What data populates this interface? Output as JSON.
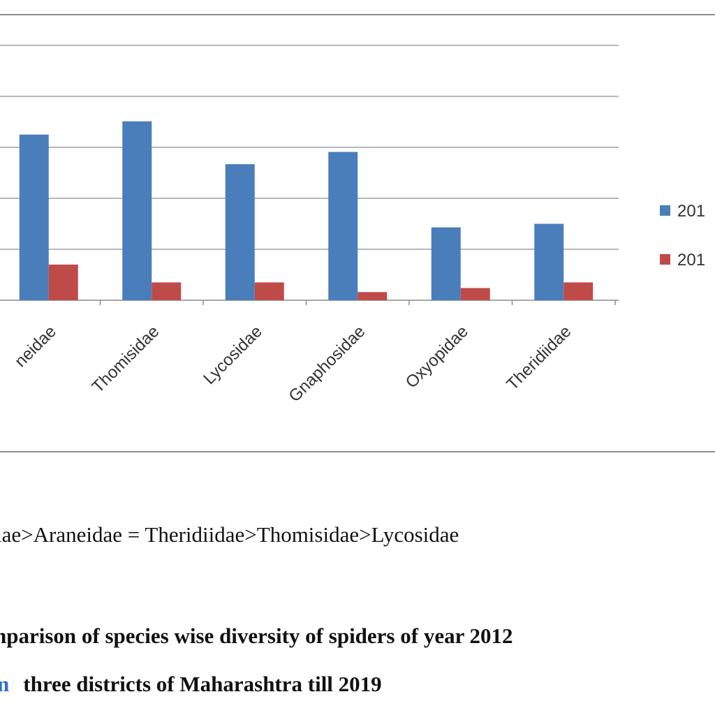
{
  "chart_data": {
    "type": "bar",
    "categories": [
      "Araneidae",
      "Thomisidae",
      "Lycosidae",
      "Gnaphosidae",
      "Oxyopidae",
      "Theridiidae"
    ],
    "categories_visible": [
      "neidae",
      "Thomisidae",
      "Lycosidae",
      "Gnaphosidae",
      "Oxyopidae",
      "Theridiidae"
    ],
    "series": [
      {
        "name": "201",
        "color": "#4a7ebb",
        "values": [
          32.5,
          35.1,
          26.7,
          29.1,
          14.3,
          15.0
        ]
      },
      {
        "name": "201",
        "color": "#be4b48",
        "values": [
          7.0,
          3.5,
          3.5,
          1.6,
          2.4,
          3.5
        ]
      }
    ],
    "ylim": [
      0,
      60
    ],
    "gridlines": true,
    "legend_position": "right"
  },
  "text": {
    "ordering": "lae>Araneidae = Theridiidae>Thomisidae>Lycosidae",
    "caption_line_1": "nparison of  species wise diversity of spiders of  year 2012",
    "caption_line_2_prefix": "n",
    "caption_line_2": "three districts of Maharashtra till  2019"
  }
}
